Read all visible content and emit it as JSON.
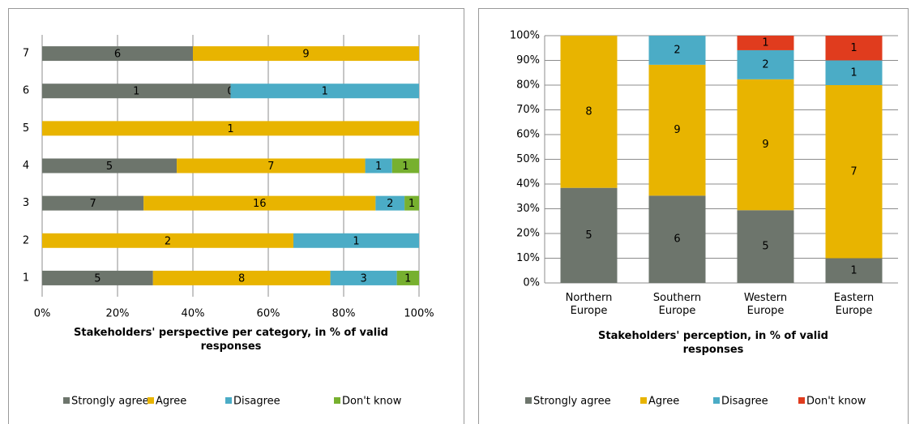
{
  "chart_data": [
    {
      "type": "bar",
      "orientation": "horizontal",
      "stack": "percent",
      "title": "Stakeholders' perspective per category, in % of valid responses",
      "categories": [
        "1",
        "2",
        "3",
        "4",
        "5",
        "6",
        "7"
      ],
      "series": [
        {
          "name": "Strongly agree",
          "color": "#6d756c",
          "values": [
            5,
            null,
            7,
            5,
            null,
            1,
            6
          ]
        },
        {
          "name": "Agree",
          "color": "#e8b400",
          "values": [
            8,
            2,
            16,
            7,
            1,
            0,
            9
          ]
        },
        {
          "name": "Disagree",
          "color": "#4bacc6",
          "values": [
            3,
            1,
            2,
            1,
            null,
            1,
            null
          ]
        },
        {
          "name": "Don't know",
          "color": "#77b02f",
          "values": [
            1,
            null,
            1,
            1,
            null,
            null,
            null
          ]
        }
      ],
      "xlim": [
        0,
        100
      ],
      "xticks": [
        {
          "value": 0,
          "label": "0%"
        },
        {
          "value": 20,
          "label": "20%"
        },
        {
          "value": 40,
          "label": "40%"
        },
        {
          "value": 60,
          "label": "60%"
        },
        {
          "value": 80,
          "label": "80%"
        },
        {
          "value": 100,
          "label": "100%"
        }
      ],
      "grid": true,
      "legend": "bottom"
    },
    {
      "type": "bar",
      "orientation": "vertical",
      "stack": "percent",
      "title": "Stakeholders' perception, in % of valid responses",
      "categories": [
        "Northern Europe",
        "Southern Europe",
        "Western Europe",
        "Eastern Europe"
      ],
      "series": [
        {
          "name": "Strongly agree",
          "color": "#6d756c",
          "values": [
            5,
            6,
            5,
            1
          ]
        },
        {
          "name": "Agree",
          "color": "#e8b400",
          "values": [
            8,
            9,
            9,
            7
          ]
        },
        {
          "name": "Disagree",
          "color": "#4bacc6",
          "values": [
            null,
            2,
            2,
            1
          ]
        },
        {
          "name": "Don't know",
          "color": "#e03c1e",
          "values": [
            null,
            null,
            1,
            1
          ]
        }
      ],
      "ylim": [
        0,
        100
      ],
      "yticks": [
        {
          "value": 0,
          "label": "0%"
        },
        {
          "value": 10,
          "label": "10%"
        },
        {
          "value": 20,
          "label": "20%"
        },
        {
          "value": 30,
          "label": "30%"
        },
        {
          "value": 40,
          "label": "40%"
        },
        {
          "value": 50,
          "label": "50%"
        },
        {
          "value": 60,
          "label": "60%"
        },
        {
          "value": 70,
          "label": "70%"
        },
        {
          "value": 80,
          "label": "80%"
        },
        {
          "value": 90,
          "label": "90%"
        },
        {
          "value": 100,
          "label": "100%"
        }
      ],
      "grid": true,
      "legend": "bottom"
    }
  ]
}
